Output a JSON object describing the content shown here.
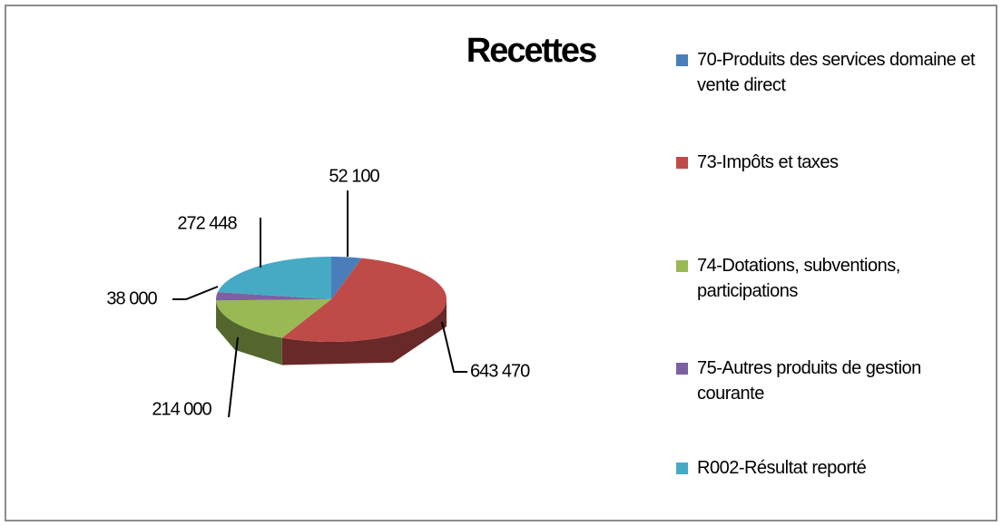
{
  "chart_data": {
    "type": "pie3d",
    "title": "Recettes",
    "categories": [
      "70-Produits des services domaine et vente direct",
      "73-Impôts et taxes",
      "74-Dotations, subventions, participations",
      "75-Autres produits de gestion courante",
      "R002-Résultat reporté"
    ],
    "values": [
      52100,
      643470,
      214000,
      38000,
      272448
    ],
    "value_labels": [
      "52 100",
      "643 470",
      "214 000",
      "38 000",
      "272 448"
    ],
    "colors": [
      "#4a7ebb",
      "#be4b48",
      "#98b954",
      "#7d60a0",
      "#46aac5"
    ],
    "legend": "right"
  }
}
